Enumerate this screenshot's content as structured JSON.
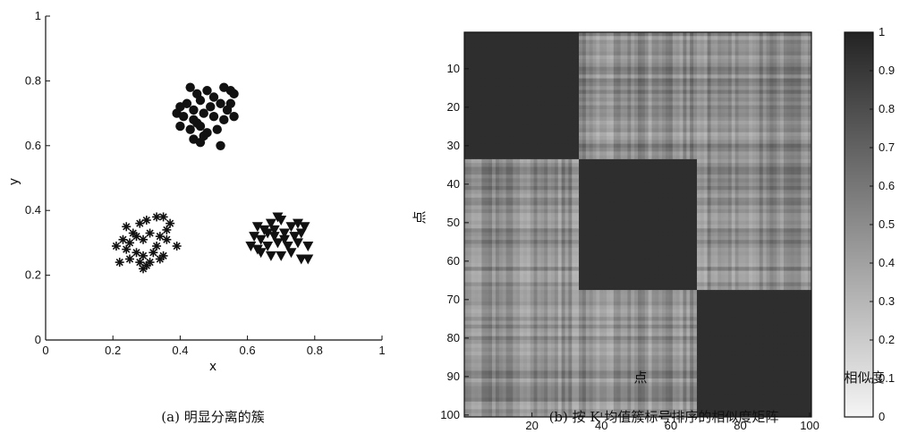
{
  "chart_data": [
    {
      "type": "scatter",
      "xlabel": "x",
      "ylabel": "y",
      "xlim": [
        0,
        1
      ],
      "ylim": [
        0,
        1
      ],
      "xticks": [
        "0",
        "0.2",
        "0.4",
        "0.6",
        "0.8",
        "1"
      ],
      "yticks": [
        "0",
        "0.2",
        "0.4",
        "0.6",
        "0.8",
        "1"
      ],
      "caption": "(a) 明显分离的簇",
      "series": [
        {
          "marker": "circle",
          "points": [
            [
              0.43,
              0.78
            ],
            [
              0.45,
              0.76
            ],
            [
              0.48,
              0.77
            ],
            [
              0.5,
              0.75
            ],
            [
              0.53,
              0.78
            ],
            [
              0.55,
              0.77
            ],
            [
              0.56,
              0.76
            ],
            [
              0.4,
              0.72
            ],
            [
              0.42,
              0.73
            ],
            [
              0.44,
              0.71
            ],
            [
              0.46,
              0.74
            ],
            [
              0.49,
              0.72
            ],
            [
              0.52,
              0.73
            ],
            [
              0.54,
              0.71
            ],
            [
              0.39,
              0.7
            ],
            [
              0.41,
              0.69
            ],
            [
              0.44,
              0.68
            ],
            [
              0.47,
              0.7
            ],
            [
              0.5,
              0.69
            ],
            [
              0.53,
              0.68
            ],
            [
              0.56,
              0.69
            ],
            [
              0.4,
              0.66
            ],
            [
              0.43,
              0.65
            ],
            [
              0.46,
              0.66
            ],
            [
              0.48,
              0.64
            ],
            [
              0.51,
              0.65
            ],
            [
              0.44,
              0.62
            ],
            [
              0.46,
              0.61
            ],
            [
              0.47,
              0.63
            ],
            [
              0.52,
              0.6
            ],
            [
              0.45,
              0.67
            ],
            [
              0.55,
              0.73
            ]
          ]
        },
        {
          "marker": "asterisk",
          "points": [
            [
              0.24,
              0.35
            ],
            [
              0.26,
              0.33
            ],
            [
              0.28,
              0.36
            ],
            [
              0.3,
              0.37
            ],
            [
              0.33,
              0.38
            ],
            [
              0.35,
              0.38
            ],
            [
              0.37,
              0.36
            ],
            [
              0.23,
              0.31
            ],
            [
              0.25,
              0.3
            ],
            [
              0.27,
              0.32
            ],
            [
              0.29,
              0.31
            ],
            [
              0.31,
              0.33
            ],
            [
              0.34,
              0.32
            ],
            [
              0.36,
              0.31
            ],
            [
              0.39,
              0.29
            ],
            [
              0.21,
              0.29
            ],
            [
              0.24,
              0.28
            ],
            [
              0.27,
              0.27
            ],
            [
              0.29,
              0.26
            ],
            [
              0.32,
              0.27
            ],
            [
              0.35,
              0.26
            ],
            [
              0.22,
              0.24
            ],
            [
              0.25,
              0.25
            ],
            [
              0.28,
              0.24
            ],
            [
              0.3,
              0.23
            ],
            [
              0.29,
              0.22
            ],
            [
              0.31,
              0.24
            ],
            [
              0.34,
              0.25
            ],
            [
              0.36,
              0.34
            ],
            [
              0.33,
              0.29
            ]
          ]
        },
        {
          "marker": "triangle-down",
          "points": [
            [
              0.63,
              0.35
            ],
            [
              0.65,
              0.34
            ],
            [
              0.67,
              0.36
            ],
            [
              0.69,
              0.38
            ],
            [
              0.7,
              0.37
            ],
            [
              0.73,
              0.35
            ],
            [
              0.75,
              0.36
            ],
            [
              0.77,
              0.35
            ],
            [
              0.62,
              0.32
            ],
            [
              0.64,
              0.31
            ],
            [
              0.66,
              0.33
            ],
            [
              0.68,
              0.32
            ],
            [
              0.71,
              0.33
            ],
            [
              0.74,
              0.32
            ],
            [
              0.76,
              0.33
            ],
            [
              0.61,
              0.29
            ],
            [
              0.63,
              0.28
            ],
            [
              0.66,
              0.29
            ],
            [
              0.69,
              0.3
            ],
            [
              0.72,
              0.29
            ],
            [
              0.75,
              0.3
            ],
            [
              0.78,
              0.29
            ],
            [
              0.64,
              0.27
            ],
            [
              0.67,
              0.26
            ],
            [
              0.7,
              0.26
            ],
            [
              0.73,
              0.27
            ],
            [
              0.76,
              0.25
            ],
            [
              0.78,
              0.25
            ],
            [
              0.68,
              0.34
            ],
            [
              0.71,
              0.31
            ]
          ]
        }
      ]
    },
    {
      "type": "heatmap",
      "xlabel": "点",
      "ylabel": "点",
      "colorbar_label": "相似度",
      "xticks": [
        "20",
        "40",
        "60",
        "80",
        "100"
      ],
      "yticks": [
        "10",
        "20",
        "30",
        "40",
        "50",
        "60",
        "70",
        "80",
        "90",
        "100"
      ],
      "colorbar_ticks": [
        "0",
        "0.1",
        "0.2",
        "0.3",
        "0.4",
        "0.5",
        "0.6",
        "0.7",
        "0.8",
        "0.9",
        "1"
      ],
      "size": 100,
      "clusters": [
        [
          1,
          33
        ],
        [
          34,
          67
        ],
        [
          68,
          100
        ]
      ],
      "within_cluster_similarity": 0.95,
      "between_cluster_similarity": 0.5,
      "colorscale": "grayscale, dark = 1, light = 0",
      "caption": "(b) 按 K 均值簇标号排序的相似度矩阵"
    }
  ]
}
